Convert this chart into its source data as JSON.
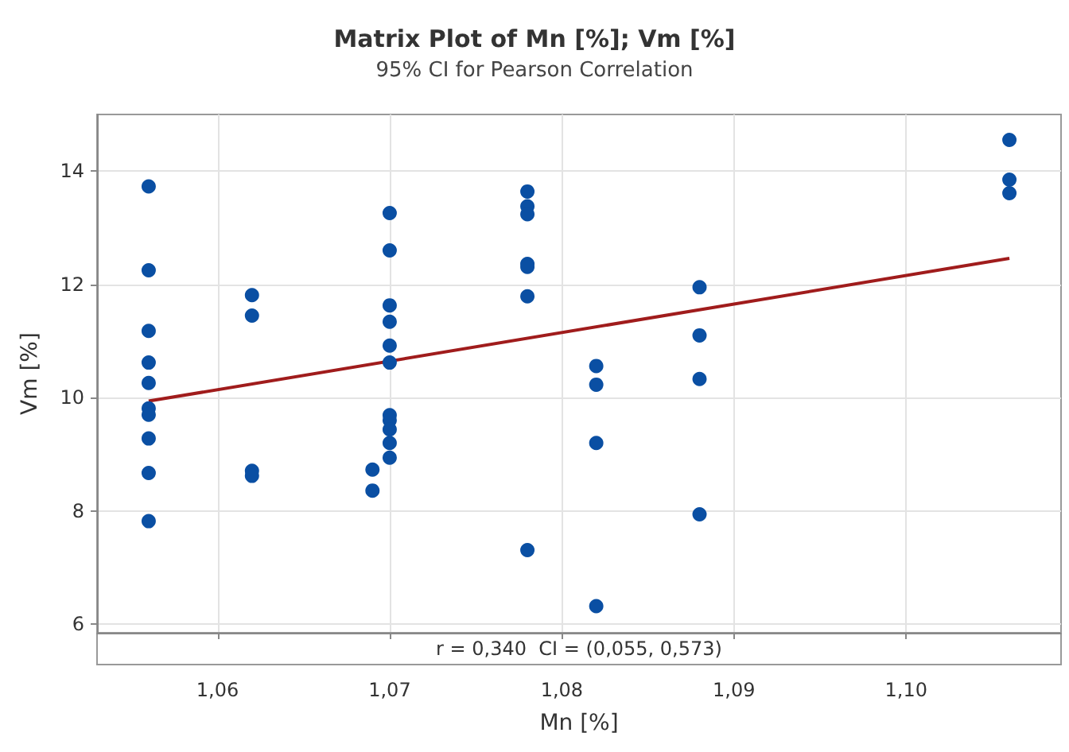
{
  "chart_data": {
    "type": "scatter",
    "title": "Matrix Plot of Mn [%]; Vm [%]",
    "subtitle": "95% CI for Pearson Correlation",
    "xlabel": "Mn [%]",
    "ylabel": "Vm [%]",
    "annotations": [
      "r = 0,340  CI = (0,055, 0,573)"
    ],
    "series": [
      {
        "marker": "circle",
        "color": "#0a4fa3",
        "x": [
          1.056,
          1.056,
          1.056,
          1.056,
          1.056,
          1.056,
          1.056,
          1.056,
          1.056,
          1.056,
          1.062,
          1.062,
          1.062,
          1.062,
          1.069,
          1.069,
          1.07,
          1.07,
          1.07,
          1.07,
          1.07,
          1.07,
          1.07,
          1.07,
          1.07,
          1.07,
          1.07,
          1.078,
          1.078,
          1.078,
          1.078,
          1.078,
          1.078,
          1.078,
          1.082,
          1.082,
          1.082,
          1.082,
          1.088,
          1.088,
          1.088,
          1.088,
          1.106,
          1.106,
          1.106
        ],
        "values": [
          13.73,
          12.25,
          11.18,
          10.62,
          10.26,
          9.81,
          9.7,
          9.28,
          8.67,
          7.82,
          11.81,
          11.45,
          8.71,
          8.62,
          8.73,
          8.36,
          13.26,
          12.6,
          11.63,
          11.34,
          10.92,
          10.62,
          9.69,
          9.6,
          9.44,
          9.2,
          8.94,
          13.64,
          13.38,
          13.24,
          12.36,
          12.31,
          11.79,
          7.31,
          10.56,
          10.23,
          9.2,
          6.32,
          11.95,
          11.1,
          10.33,
          7.94,
          14.55,
          13.85,
          13.61
        ]
      },
      {
        "type": "line",
        "marker": "none",
        "line_style": "solid",
        "color": "#a01c1c",
        "x": [
          1.056,
          1.106
        ],
        "values": [
          9.94,
          12.46
        ]
      }
    ],
    "xlim": [
      1.053,
      1.109
    ],
    "xticks": [
      {
        "value": 1.06,
        "label": "1,06"
      },
      {
        "value": 1.07,
        "label": "1,07"
      },
      {
        "value": 1.08,
        "label": "1,08"
      },
      {
        "value": 1.09,
        "label": "1,09"
      },
      {
        "value": 1.1,
        "label": "1,10"
      }
    ],
    "ylim": [
      5.85,
      15
    ],
    "yticks": [
      6,
      8,
      10,
      12,
      14
    ],
    "grid": true
  }
}
